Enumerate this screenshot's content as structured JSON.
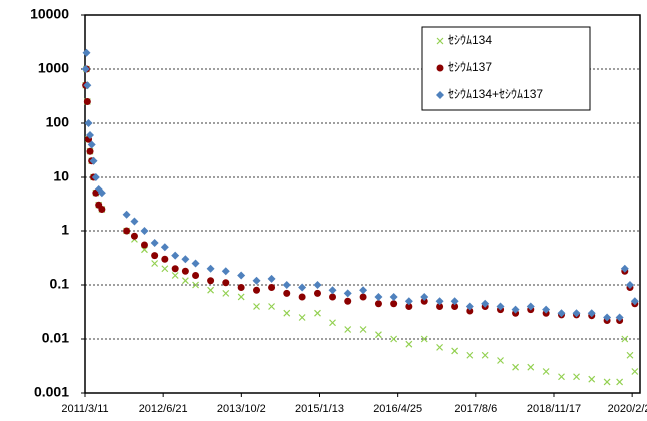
{
  "chart_data": {
    "type": "scatter",
    "log_y": true,
    "grid": true,
    "legend": "upper right",
    "x": [
      "2011-03-15",
      "2011-03-20",
      "2011-03-25",
      "2011-04-01",
      "2011-04-10",
      "2011-04-20",
      "2011-05-01",
      "2011-05-15",
      "2011-06-01",
      "2011-06-20",
      "2011-11-15",
      "2012-01-01",
      "2012-03-01",
      "2012-05-01",
      "2012-07-01",
      "2012-09-01",
      "2012-11-01",
      "2013-01-01",
      "2013-04-01",
      "2013-07-01",
      "2013-10-01",
      "2014-01-01",
      "2014-04-01",
      "2014-07-01",
      "2014-10-01",
      "2015-01-01",
      "2015-04-01",
      "2015-07-01",
      "2015-10-01",
      "2016-01-01",
      "2016-04-01",
      "2016-07-01",
      "2016-10-01",
      "2017-01-01",
      "2017-04-01",
      "2017-07-01",
      "2017-10-01",
      "2018-01-01",
      "2018-04-01",
      "2018-07-01",
      "2018-10-01",
      "2019-01-01",
      "2019-04-01",
      "2019-07-01",
      "2019-10-01",
      "2019-12-15",
      "2020-01-15",
      "2020-02-15",
      "2020-03-15"
    ],
    "series": [
      {
        "name": "ｾｼｳﾑ134",
        "color": "#92d050",
        "marker": "x",
        "values": [
          500,
          1000,
          250,
          50,
          30,
          20,
          10,
          5,
          3,
          2.5,
          1.0,
          0.7,
          0.45,
          0.25,
          0.2,
          0.15,
          0.12,
          0.1,
          0.08,
          0.07,
          0.06,
          0.04,
          0.04,
          0.03,
          0.025,
          0.03,
          0.02,
          0.015,
          0.015,
          0.012,
          0.01,
          0.008,
          0.01,
          0.007,
          0.006,
          0.005,
          0.005,
          0.004,
          0.003,
          0.003,
          0.0025,
          0.002,
          0.002,
          0.0018,
          0.0016,
          0.0016,
          0.01,
          0.005,
          0.0025
        ]
      },
      {
        "name": "ｾｼｳﾑ137",
        "color": "#8b0000",
        "marker": "circle",
        "values": [
          500,
          1000,
          250,
          50,
          30,
          20,
          10,
          5,
          3,
          2.5,
          1.0,
          0.8,
          0.55,
          0.35,
          0.3,
          0.2,
          0.18,
          0.15,
          0.12,
          0.11,
          0.09,
          0.08,
          0.09,
          0.07,
          0.06,
          0.07,
          0.06,
          0.05,
          0.06,
          0.045,
          0.045,
          0.04,
          0.05,
          0.04,
          0.04,
          0.033,
          0.04,
          0.035,
          0.03,
          0.035,
          0.03,
          0.028,
          0.028,
          0.027,
          0.022,
          0.022,
          0.18,
          0.09,
          0.045
        ]
      },
      {
        "name": "ｾｼｳﾑ134+ｾｼｳﾑ137",
        "color": "#4f81bd",
        "marker": "diamond",
        "values": [
          1000,
          2000,
          500,
          100,
          60,
          40,
          20,
          10,
          6,
          5,
          2,
          1.5,
          1.0,
          0.6,
          0.5,
          0.35,
          0.3,
          0.25,
          0.2,
          0.18,
          0.15,
          0.12,
          0.13,
          0.1,
          0.09,
          0.1,
          0.08,
          0.07,
          0.08,
          0.06,
          0.06,
          0.05,
          0.06,
          0.05,
          0.05,
          0.04,
          0.045,
          0.04,
          0.035,
          0.04,
          0.035,
          0.03,
          0.03,
          0.03,
          0.025,
          0.025,
          0.2,
          0.1,
          0.05
        ]
      }
    ],
    "xlim": [
      "2011-03-11",
      "2020-04-15"
    ],
    "xticks": [
      {
        "value": "2011-03-11",
        "label": "2011/3/11"
      },
      {
        "value": "2012-06-21",
        "label": "2012/6/21"
      },
      {
        "value": "2013-10-02",
        "label": "2013/10/2"
      },
      {
        "value": "2015-01-13",
        "label": "2015/1/13"
      },
      {
        "value": "2016-04-25",
        "label": "2016/4/25"
      },
      {
        "value": "2017-08-06",
        "label": "2017/8/6"
      },
      {
        "value": "2018-11-17",
        "label": "2018/11/17"
      },
      {
        "value": "2020-02-28",
        "label": "2020/2/28"
      }
    ],
    "ylim": [
      0.001,
      10000
    ],
    "yticks": [
      0.001,
      0.01,
      0.1,
      1,
      10,
      100,
      1000,
      10000
    ]
  }
}
